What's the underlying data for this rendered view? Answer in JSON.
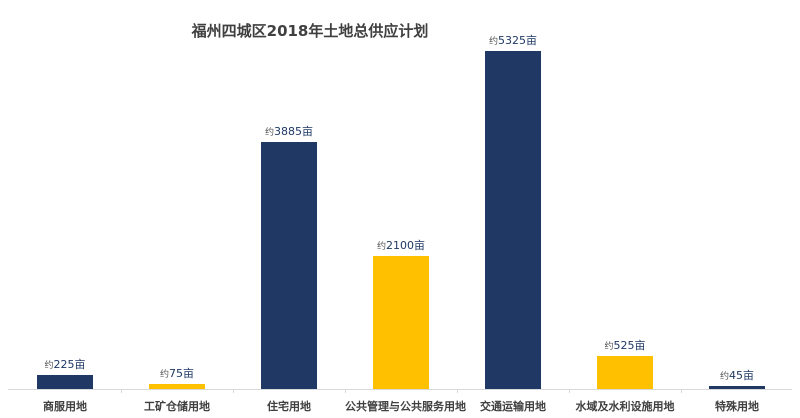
{
  "chart_data": {
    "type": "bar",
    "title": "福州四城区2018年土地总供应计划",
    "xlabel": "",
    "ylabel": "",
    "unit": "亩",
    "label_prefix": "约",
    "categories": [
      "商服用地",
      "工矿仓储用地",
      "住宅用地",
      "公共管理与公共服务用地",
      "交通运输用地",
      "水域及水利设施用地",
      "特殊用地"
    ],
    "values": [
      225,
      75,
      3885,
      2100,
      5325,
      525,
      45
    ],
    "labels": [
      "约225亩",
      "约75亩",
      "约3885亩",
      "约2100亩",
      "约5325亩",
      "约525亩",
      "约45亩"
    ],
    "colors": [
      "#1f3864",
      "#ffc000",
      "#1f3864",
      "#ffc000",
      "#1f3864",
      "#ffc000",
      "#1f3864"
    ],
    "ylim": [
      0,
      5325
    ],
    "grid": false,
    "legend": "none"
  },
  "colors": {
    "navy": "#1f3864",
    "gold": "#ffc000"
  }
}
